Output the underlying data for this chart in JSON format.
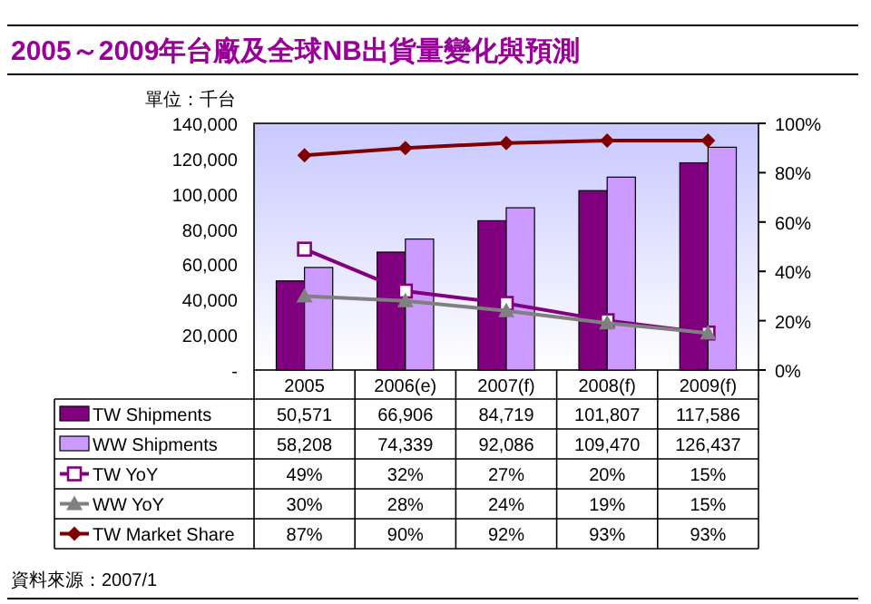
{
  "chart_data": {
    "type": "bar",
    "title": "2005～2009年台廠及全球NB出貨量變化與預測",
    "ylabel": "單位：千台",
    "categories": [
      "2005",
      "2006(e)",
      "2007(f)",
      "2008(f)",
      "2009(f)"
    ],
    "series": [
      {
        "name": "TW Shipments",
        "color": "#800080",
        "values": [
          50571,
          66906,
          84719,
          101807,
          117586
        ],
        "value_labels": [
          "50,571",
          "66,906",
          "84,719",
          "101,807",
          "117,586"
        ]
      },
      {
        "name": "WW Shipments",
        "color": "#cc99ff",
        "values": [
          58208,
          74339,
          92086,
          109470,
          126437
        ],
        "value_labels": [
          "58,208",
          "74,339",
          "92,086",
          "109,470",
          "126,437"
        ]
      },
      {
        "name": "TW YoY",
        "type": "line",
        "axis": "y2",
        "marker": "square",
        "color": "#800080",
        "values": [
          49,
          32,
          27,
          20,
          15
        ],
        "value_labels": [
          "49%",
          "32%",
          "27%",
          "20%",
          "15%"
        ]
      },
      {
        "name": "WW YoY",
        "type": "line",
        "axis": "y2",
        "marker": "triangle",
        "color": "#808080",
        "values": [
          30,
          28,
          24,
          19,
          15
        ],
        "value_labels": [
          "30%",
          "28%",
          "24%",
          "19%",
          "15%"
        ]
      },
      {
        "name": "TW Market Share",
        "type": "line",
        "axis": "y2",
        "marker": "diamond",
        "color": "#800000",
        "values": [
          87,
          90,
          92,
          93,
          93
        ],
        "value_labels": [
          "87%",
          "90%",
          "92%",
          "93%",
          "93%"
        ]
      }
    ],
    "ylim": [
      0,
      140000
    ],
    "yticks": [
      {
        "value": 0,
        "label": "-"
      },
      {
        "value": 20000,
        "label": "20,000"
      },
      {
        "value": 40000,
        "label": "40,000"
      },
      {
        "value": 60000,
        "label": "60,000"
      },
      {
        "value": 80000,
        "label": "80,000"
      },
      {
        "value": 100000,
        "label": "100,000"
      },
      {
        "value": 120000,
        "label": "120,000"
      },
      {
        "value": 140000,
        "label": "140,000"
      }
    ],
    "y2lim": [
      0,
      100
    ],
    "y2ticks": [
      {
        "value": 0,
        "label": "0%"
      },
      {
        "value": 20,
        "label": "20%"
      },
      {
        "value": 40,
        "label": "40%"
      },
      {
        "value": 60,
        "label": "60%"
      },
      {
        "value": 80,
        "label": "80%"
      },
      {
        "value": 100,
        "label": "100%"
      }
    ],
    "legend": "bottom",
    "annotations": [
      "資料來源：2007/1"
    ]
  }
}
